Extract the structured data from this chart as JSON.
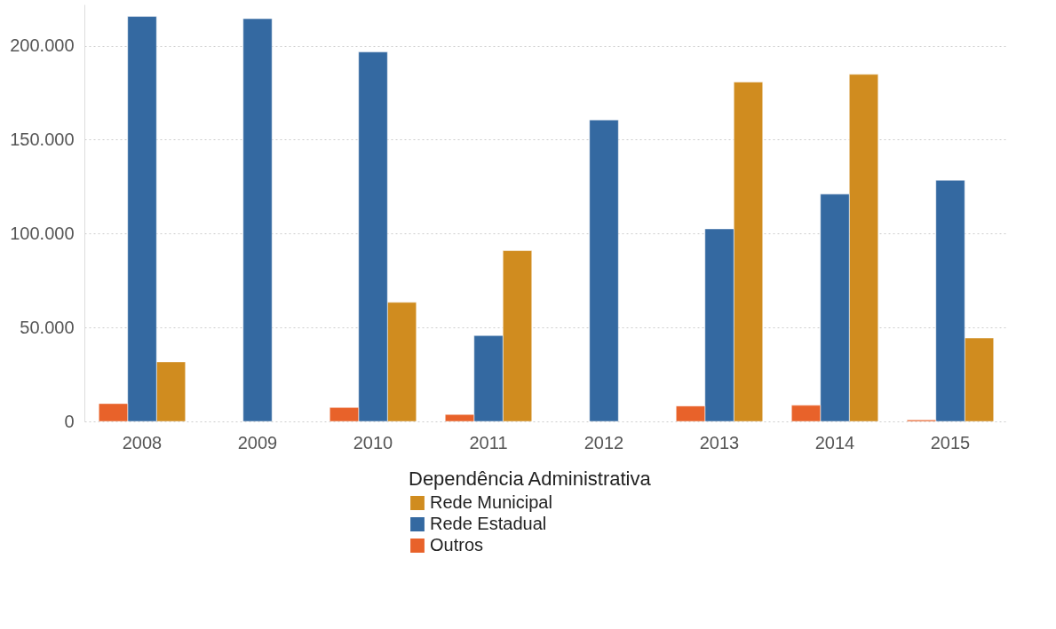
{
  "chart_data": {
    "type": "bar",
    "categories": [
      "2008",
      "2009",
      "2010",
      "2011",
      "2012",
      "2013",
      "2014",
      "2015"
    ],
    "series": [
      {
        "name": "Rede Municipal",
        "color": "#d08c1f",
        "values": [
          31700,
          null,
          63400,
          90900,
          null,
          180700,
          184800,
          44400
        ]
      },
      {
        "name": "Rede Estadual",
        "color": "#3469a1",
        "values": [
          215600,
          214400,
          196700,
          45700,
          160500,
          102500,
          121000,
          128400
        ]
      },
      {
        "name": "Outros",
        "color": "#e8622a",
        "values": [
          9500,
          null,
          7400,
          3700,
          null,
          8200,
          8600,
          800
        ]
      }
    ],
    "legend_title": "Dependência Administrativa",
    "legend": "bottom",
    "grid": "y",
    "ylim": [
      0,
      222000
    ],
    "yticks": [
      {
        "value": 0,
        "label": "0"
      },
      {
        "value": 50000,
        "label": "50.000"
      },
      {
        "value": 100000,
        "label": "100.000"
      },
      {
        "value": 150000,
        "label": "150.000"
      },
      {
        "value": 200000,
        "label": "200.000"
      }
    ]
  }
}
